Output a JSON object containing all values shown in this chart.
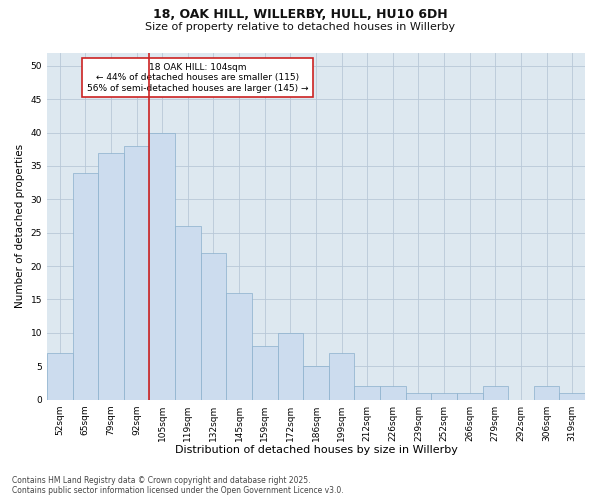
{
  "title_line1": "18, OAK HILL, WILLERBY, HULL, HU10 6DH",
  "title_line2": "Size of property relative to detached houses in Willerby",
  "xlabel": "Distribution of detached houses by size in Willerby",
  "ylabel": "Number of detached properties",
  "categories": [
    "52sqm",
    "65sqm",
    "79sqm",
    "92sqm",
    "105sqm",
    "119sqm",
    "132sqm",
    "145sqm",
    "159sqm",
    "172sqm",
    "186sqm",
    "199sqm",
    "212sqm",
    "226sqm",
    "239sqm",
    "252sqm",
    "266sqm",
    "279sqm",
    "292sqm",
    "306sqm",
    "319sqm"
  ],
  "values": [
    7,
    34,
    37,
    38,
    40,
    26,
    22,
    16,
    8,
    10,
    5,
    7,
    2,
    2,
    1,
    1,
    1,
    2,
    0,
    2,
    1
  ],
  "bar_color": "#ccdcee",
  "bar_edge_color": "#8ab0cc",
  "bar_edge_width": 0.5,
  "highlight_line_index": 4,
  "highlight_line_color": "#cc2222",
  "annotation_text": "18 OAK HILL: 104sqm\n← 44% of detached houses are smaller (115)\n56% of semi-detached houses are larger (145) →",
  "annotation_box_color": "white",
  "annotation_box_edge": "#cc2222",
  "ylim": [
    0,
    52
  ],
  "yticks": [
    0,
    5,
    10,
    15,
    20,
    25,
    30,
    35,
    40,
    45,
    50
  ],
  "fig_background": "#ffffff",
  "plot_background": "#dde8f0",
  "grid_color": "#b8c8d8",
  "footer_line1": "Contains HM Land Registry data © Crown copyright and database right 2025.",
  "footer_line2": "Contains public sector information licensed under the Open Government Licence v3.0.",
  "title1_fontsize": 9,
  "title2_fontsize": 8,
  "ylabel_fontsize": 7.5,
  "xlabel_fontsize": 8,
  "tick_fontsize": 6.5,
  "annot_fontsize": 6.5,
  "footer_fontsize": 5.5
}
